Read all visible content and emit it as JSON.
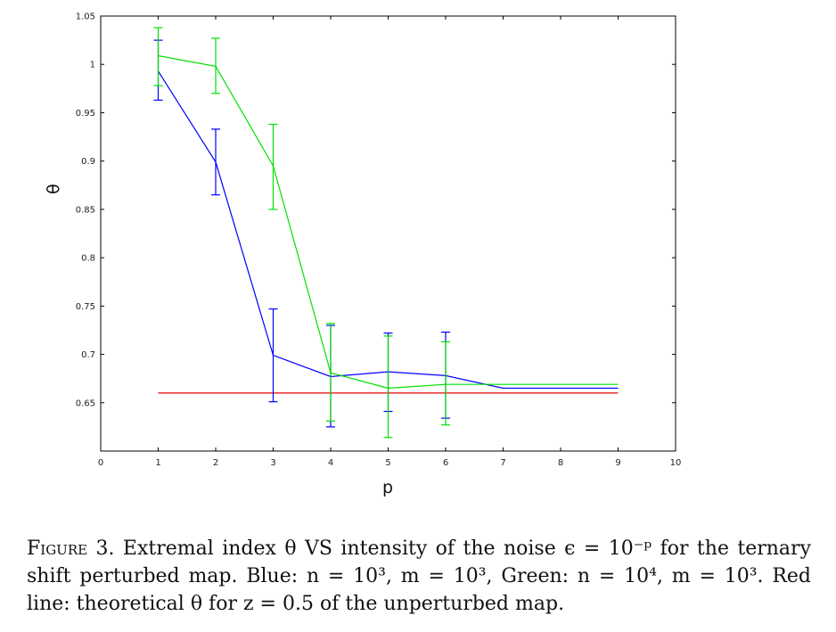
{
  "chart_data": {
    "type": "line",
    "xlabel": "p",
    "ylabel": "θ",
    "xlim": [
      0,
      10
    ],
    "ylim": [
      0.6,
      1.05
    ],
    "xticks": [
      "0",
      "1",
      "2",
      "3",
      "4",
      "5",
      "6",
      "7",
      "8",
      "9",
      "10"
    ],
    "yticks": [
      "0.65",
      "0.7",
      "0.75",
      "0.8",
      "0.85",
      "0.9",
      "0.95",
      "1",
      "1.05"
    ],
    "series": [
      {
        "color": "#0000ff",
        "x": [
          1,
          2,
          3,
          4,
          5,
          6,
          7,
          8,
          9
        ],
        "y": [
          0.993,
          0.899,
          0.699,
          0.677,
          0.682,
          0.678,
          0.665,
          0.665,
          0.665
        ],
        "err_x": [
          1,
          2,
          3,
          4,
          5,
          6
        ],
        "err_low": [
          0.963,
          0.865,
          0.651,
          0.625,
          0.641,
          0.634
        ],
        "err_high": [
          1.025,
          0.933,
          0.747,
          0.73,
          0.722,
          0.723
        ]
      },
      {
        "color": "#00e000",
        "x": [
          1,
          2,
          3,
          4,
          5,
          6,
          7,
          8,
          9
        ],
        "y": [
          1.009,
          0.998,
          0.895,
          0.681,
          0.665,
          0.669,
          0.669,
          0.669,
          0.669
        ],
        "err_x": [
          1,
          2,
          3,
          4,
          5,
          6
        ],
        "err_low": [
          0.978,
          0.97,
          0.85,
          0.631,
          0.614,
          0.627
        ],
        "err_high": [
          1.038,
          1.027,
          0.938,
          0.732,
          0.719,
          0.713
        ]
      },
      {
        "color": "#ee0000",
        "x": [
          1,
          9
        ],
        "y": [
          0.66,
          0.66
        ]
      }
    ]
  },
  "caption": {
    "label": "Figure 3.",
    "text": " Extremal index θ VS intensity of the noise ϵ = 10⁻ᵖ for the ternary shift perturbed map. Blue: n = 10³, m = 10³, Green: n = 10⁴, m = 10³. Red line: theoretical θ for z = 0.5 of the unperturbed map."
  }
}
